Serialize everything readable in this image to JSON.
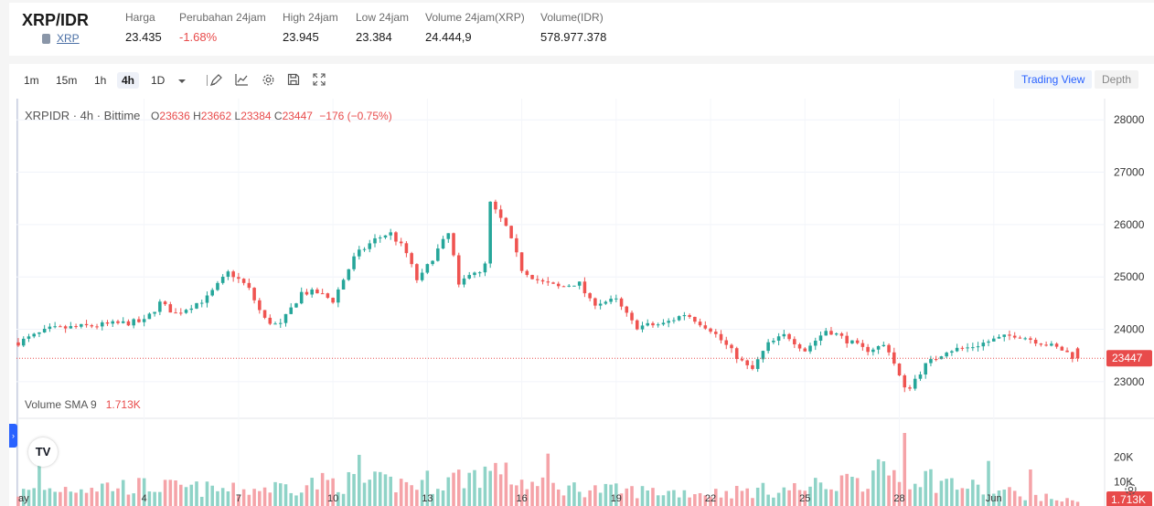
{
  "header": {
    "pair": "XRP/IDR",
    "coin": "XRP",
    "stats": [
      {
        "label": "Harga",
        "value": "23.435",
        "negative": false
      },
      {
        "label": "Perubahan 24jam",
        "value": "-1.68%",
        "negative": true
      },
      {
        "label": "High 24jam",
        "value": "23.945",
        "negative": false
      },
      {
        "label": "Low 24jam",
        "value": "23.384",
        "negative": false
      },
      {
        "label": "Volume 24jam(XRP)",
        "value": "24.444,9",
        "negative": false
      },
      {
        "label": "Volume(IDR)",
        "value": "578.977.378",
        "negative": false
      }
    ]
  },
  "toolbar": {
    "timeframes": [
      "1m",
      "15m",
      "1h",
      "4h",
      "1D"
    ],
    "active_timeframe": "4h",
    "separator": "|",
    "icons": [
      "chevron-down-icon",
      "draw-icon",
      "indicator-icon",
      "gear-icon",
      "save-icon",
      "fullscreen-icon"
    ],
    "views": [
      "Trading View",
      "Depth"
    ],
    "active_view": "Trading View"
  },
  "legend": {
    "symbol": "XRPIDR · 4h · Bittime",
    "o_label": "O",
    "o": "23636",
    "h_label": "H",
    "h": "23662",
    "l_label": "L",
    "l": "23384",
    "c_label": "C",
    "c": "23447",
    "change": "−176 (−0.75%)"
  },
  "volume_legend": {
    "label": "Volume SMA 9",
    "value": "1.713K"
  },
  "colors": {
    "up": "#26a69a",
    "down": "#ef5350",
    "up_vol": "#8fd3c7",
    "down_vol": "#f5a3a8",
    "price_line": "#e84b4b"
  },
  "chart_data": {
    "type": "candlestick",
    "price_axis_ticks": [
      "28000",
      "27000",
      "26000",
      "25000",
      "24000",
      "23000"
    ],
    "price_ylim": [
      22300,
      28300
    ],
    "last_price_label": "23447",
    "last_price": 23447,
    "volume_axis_ticks": [
      "20K",
      "10K"
    ],
    "volume_ylim": [
      0,
      33000
    ],
    "last_volume_label": "1.713K",
    "x_tick_labels": [
      "ay",
      "4",
      "7",
      "10",
      "13",
      "16",
      "19",
      "22",
      "25",
      "28",
      "Jun"
    ],
    "x_tick_values": [
      0,
      4,
      7,
      10,
      13,
      16,
      19,
      22,
      25,
      28,
      31
    ],
    "x_range": [
      0,
      34
    ],
    "anchor_closes": [
      [
        0.0,
        23750
      ],
      [
        1.0,
        24000
      ],
      [
        2.0,
        24050
      ],
      [
        3.0,
        24100
      ],
      [
        4.0,
        24150
      ],
      [
        4.5,
        24500
      ],
      [
        5.0,
        24300
      ],
      [
        6.0,
        24600
      ],
      [
        6.7,
        25100
      ],
      [
        7.3,
        24800
      ],
      [
        7.8,
        24200
      ],
      [
        8.3,
        24050
      ],
      [
        9.0,
        24700
      ],
      [
        9.5,
        24700
      ],
      [
        10.0,
        24550
      ],
      [
        10.7,
        25400
      ],
      [
        11.3,
        25700
      ],
      [
        11.8,
        25850
      ],
      [
        12.3,
        25500
      ],
      [
        12.7,
        24900
      ],
      [
        13.2,
        25400
      ],
      [
        13.7,
        25850
      ],
      [
        14.0,
        24800
      ],
      [
        14.4,
        25150
      ],
      [
        14.8,
        25000
      ],
      [
        15.0,
        26400
      ],
      [
        15.5,
        25950
      ],
      [
        16.0,
        25150
      ],
      [
        16.6,
        24900
      ],
      [
        17.2,
        24800
      ],
      [
        17.8,
        24900
      ],
      [
        18.2,
        24500
      ],
      [
        19.0,
        24550
      ],
      [
        19.6,
        24050
      ],
      [
        20.5,
        24100
      ],
      [
        21.2,
        24300
      ],
      [
        22.0,
        24000
      ],
      [
        22.8,
        23500
      ],
      [
        23.3,
        23200
      ],
      [
        23.8,
        23700
      ],
      [
        24.4,
        23900
      ],
      [
        25.0,
        23600
      ],
      [
        25.7,
        24000
      ],
      [
        26.3,
        23800
      ],
      [
        26.9,
        23600
      ],
      [
        27.6,
        23700
      ],
      [
        28.2,
        22800
      ],
      [
        28.8,
        23300
      ],
      [
        29.5,
        23600
      ],
      [
        30.2,
        23650
      ],
      [
        31.0,
        23800
      ],
      [
        31.7,
        23900
      ],
      [
        32.5,
        23750
      ],
      [
        33.2,
        23600
      ],
      [
        33.6,
        23447
      ]
    ],
    "volume_profile": [
      [
        0.0,
        6000
      ],
      [
        2.0,
        9000
      ],
      [
        4.0,
        9000
      ],
      [
        7.0,
        7000
      ],
      [
        10.0,
        11000
      ],
      [
        13.0,
        10000
      ],
      [
        15.0,
        16000
      ],
      [
        16.5,
        9000
      ],
      [
        19.0,
        7000
      ],
      [
        22.0,
        6000
      ],
      [
        25.0,
        8000
      ],
      [
        28.0,
        16000
      ],
      [
        30.0,
        9000
      ],
      [
        33.6,
        2000
      ]
    ],
    "volume_spikes": [
      [
        0.6,
        21000
      ],
      [
        10.9,
        21000
      ],
      [
        16.8,
        21500
      ],
      [
        28.2,
        30000
      ],
      [
        30.9,
        18500
      ],
      [
        32.1,
        15000
      ],
      [
        26.5,
        12000
      ],
      [
        15.3,
        13000
      ],
      [
        13.0,
        14500
      ]
    ],
    "candles_per_day": 6,
    "last_candle": {
      "o": 23636,
      "h": 23662,
      "l": 23384,
      "c": 23447
    }
  }
}
